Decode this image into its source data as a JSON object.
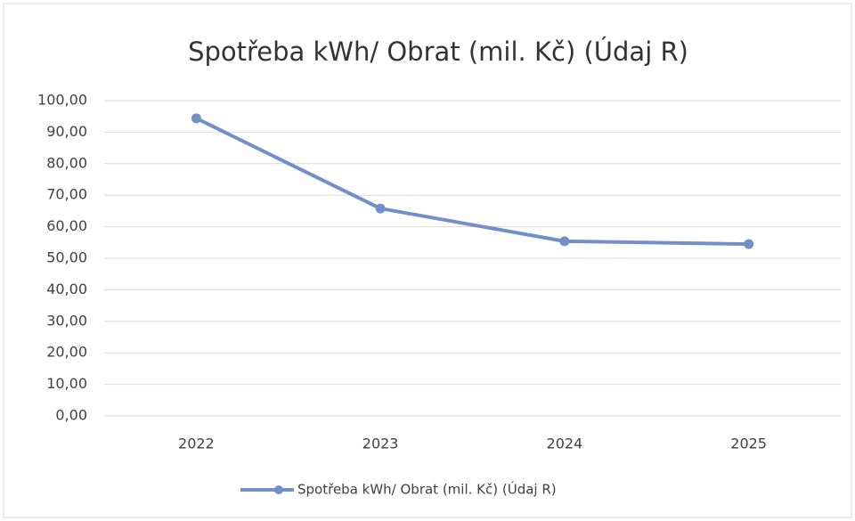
{
  "chart_data": {
    "type": "line",
    "title": "Spotřeba kWh/ Obrat (mil. Kč) (Údaj R)",
    "categories": [
      "2022",
      "2023",
      "2024",
      "2025"
    ],
    "series": [
      {
        "name": "Spotřeba kWh/ Obrat (mil. Kč) (Údaj R)",
        "color": "#7290c7",
        "values": [
          94.4,
          65.8,
          55.4,
          54.5
        ]
      }
    ],
    "ylim": [
      0,
      100
    ],
    "yticks": [
      {
        "value": 0,
        "label": "0,00"
      },
      {
        "value": 10,
        "label": "10,00"
      },
      {
        "value": 20,
        "label": "20,00"
      },
      {
        "value": 30,
        "label": "30,00"
      },
      {
        "value": 40,
        "label": "40,00"
      },
      {
        "value": 50,
        "label": "50,00"
      },
      {
        "value": 60,
        "label": "60,00"
      },
      {
        "value": 70,
        "label": "70,00"
      },
      {
        "value": 80,
        "label": "80,00"
      },
      {
        "value": 90,
        "label": "90,00"
      },
      {
        "value": 100,
        "label": "100,00"
      }
    ],
    "grid": true,
    "legend": "bottom"
  }
}
